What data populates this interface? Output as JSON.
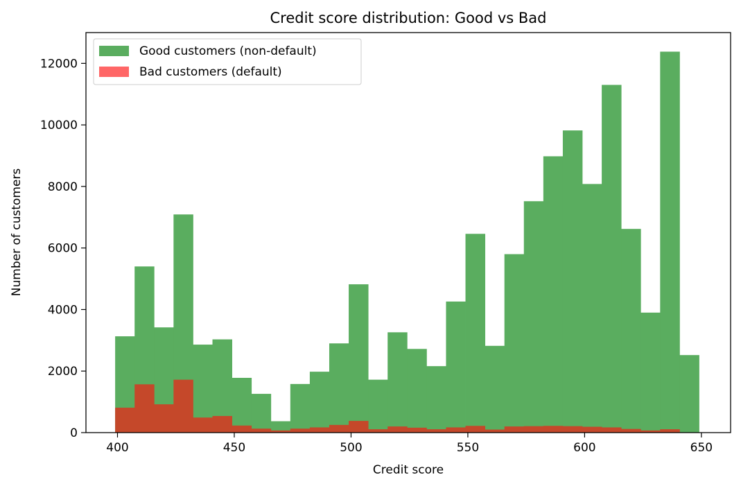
{
  "chart_data": {
    "type": "bar",
    "title": "Credit score distribution: Good vs Bad",
    "xlabel": "Credit score",
    "ylabel": "Number of customers",
    "xlim": [
      386.5,
      662.5
    ],
    "ylim": [
      0,
      13000
    ],
    "xticks": [
      400,
      450,
      500,
      550,
      600,
      650
    ],
    "yticks": [
      0,
      2000,
      4000,
      6000,
      8000,
      10000,
      12000
    ],
    "grid": false,
    "legend_position": "top-left",
    "colors": {
      "good": "#5aad5f",
      "bad": "#ff6666",
      "overlap": "#c5482a"
    },
    "series": [
      {
        "name": "Good customers (non-default)",
        "bin_start": 399,
        "bin_width": 8.333,
        "values": [
          3130,
          5400,
          3420,
          7090,
          2860,
          3030,
          1780,
          1260,
          370,
          1580,
          1980,
          2900,
          4820,
          1720,
          3260,
          2720,
          2160,
          4260,
          6460,
          2820,
          5800,
          7520,
          8980,
          9820,
          8080,
          11300,
          6620,
          3900,
          12380,
          2520
        ]
      },
      {
        "name": "Bad customers (default)",
        "bin_start": 399,
        "bin_width": 8.333,
        "values": [
          810,
          1570,
          920,
          1720,
          490,
          540,
          230,
          130,
          70,
          130,
          170,
          250,
          380,
          110,
          200,
          160,
          110,
          170,
          220,
          100,
          200,
          210,
          220,
          210,
          190,
          170,
          120,
          70,
          110,
          0
        ]
      }
    ]
  }
}
